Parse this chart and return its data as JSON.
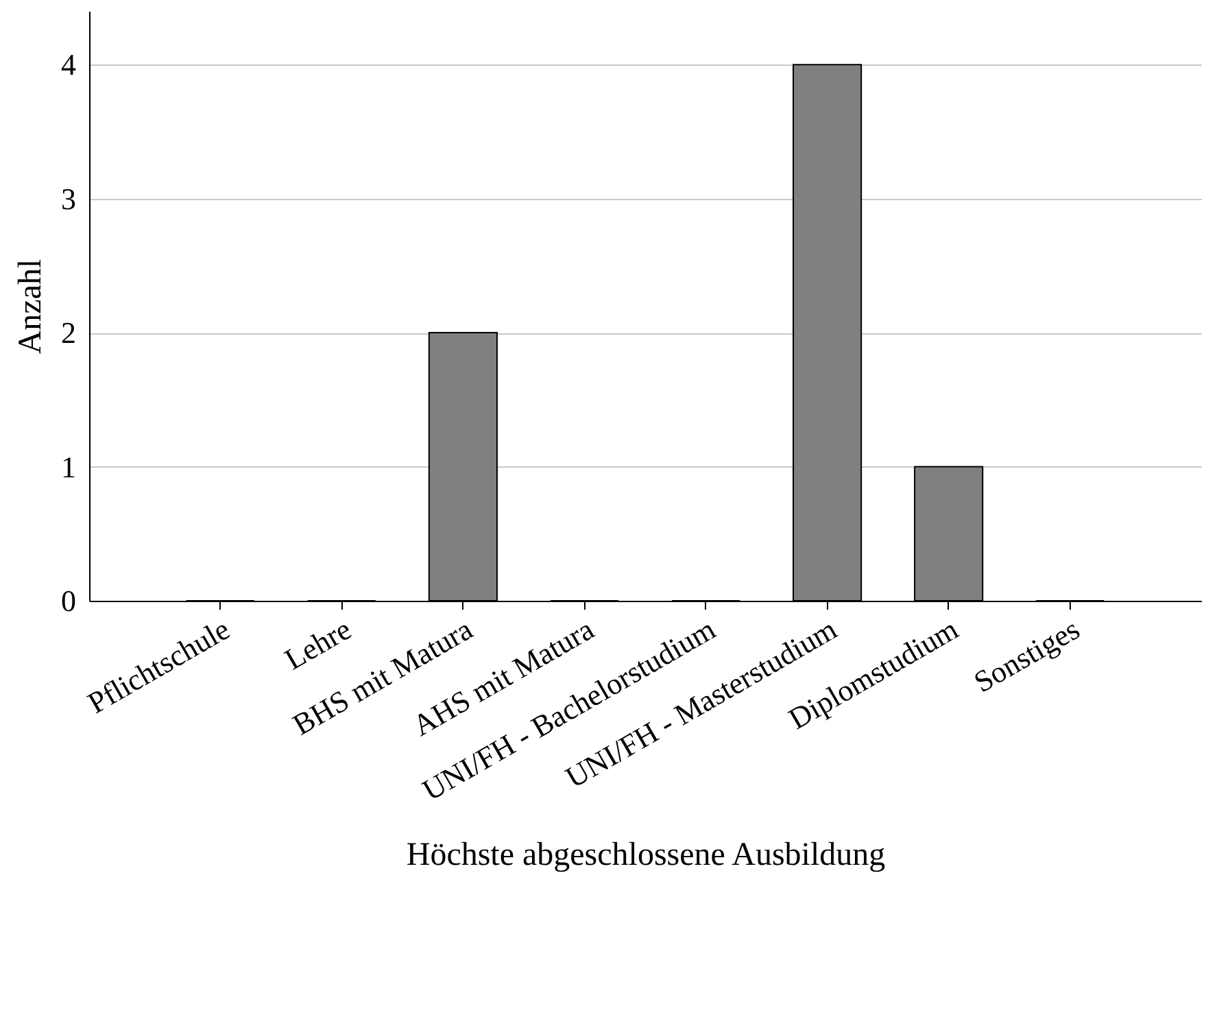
{
  "chart_data": {
    "type": "bar",
    "xlabel": "Höchste abgeschlossene Ausbildung",
    "ylabel": "Anzahl",
    "categories": [
      "Pflichtschule",
      "Lehre",
      "BHS mit Matura",
      "AHS mit Matura",
      "UNI/FH - Bachelorstudium",
      "UNI/FH - Masterstudium",
      "Diplomstudium",
      "Sonstiges"
    ],
    "values": [
      0,
      0,
      2,
      0,
      0,
      4,
      1,
      0
    ],
    "color": "#808080",
    "ylim": [
      0,
      4.4
    ],
    "yticks": [
      0,
      1,
      2,
      3,
      4
    ],
    "grid": "y"
  }
}
